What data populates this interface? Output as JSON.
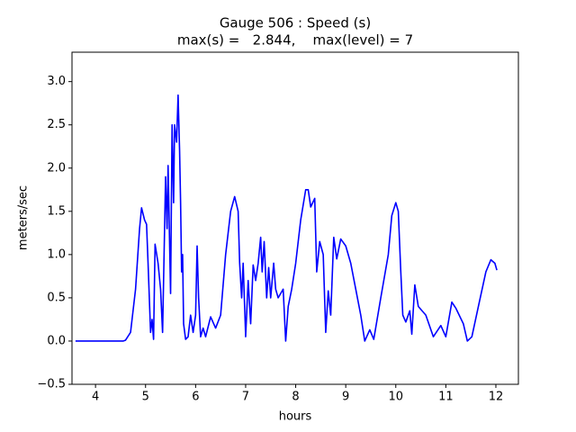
{
  "chart_data": {
    "type": "line",
    "title": "Gauge 506 : Speed (s)",
    "subtitle": "max(s) =   2.844,    max(level) = 7",
    "x_label": "hours",
    "y_label": "meters/sec",
    "color": "#0000ff",
    "x": [
      3.6,
      4.55,
      4.6,
      4.7,
      4.8,
      4.88,
      4.92,
      4.98,
      5.02,
      5.05,
      5.1,
      5.13,
      5.16,
      5.19,
      5.25,
      5.3,
      5.34,
      5.4,
      5.43,
      5.45,
      5.5,
      5.53,
      5.56,
      5.58,
      5.62,
      5.65,
      5.68,
      5.7,
      5.72,
      5.74,
      5.76,
      5.8,
      5.85,
      5.9,
      5.95,
      6.0,
      6.03,
      6.06,
      6.1,
      6.15,
      6.2,
      6.3,
      6.4,
      6.5,
      6.6,
      6.7,
      6.78,
      6.85,
      6.88,
      6.92,
      6.95,
      7.0,
      7.05,
      7.1,
      7.15,
      7.2,
      7.25,
      7.3,
      7.33,
      7.37,
      7.42,
      7.46,
      7.5,
      7.56,
      7.6,
      7.65,
      7.75,
      7.8,
      7.85,
      7.92,
      8.0,
      8.1,
      8.2,
      8.25,
      8.3,
      8.38,
      8.42,
      8.48,
      8.55,
      8.6,
      8.65,
      8.7,
      8.76,
      8.82,
      8.9,
      9.0,
      9.1,
      9.2,
      9.3,
      9.38,
      9.48,
      9.56,
      9.7,
      9.85,
      9.92,
      10.0,
      10.05,
      10.1,
      10.14,
      10.2,
      10.28,
      10.32,
      10.38,
      10.45,
      10.6,
      10.75,
      10.9,
      11.0,
      11.12,
      11.2,
      11.35,
      11.43,
      11.52,
      11.65,
      11.8,
      11.9,
      11.98,
      12.02
    ],
    "values": [
      0.0,
      0.0,
      0.01,
      0.1,
      0.6,
      1.3,
      1.54,
      1.4,
      1.35,
      0.9,
      0.1,
      0.25,
      0.02,
      1.12,
      0.9,
      0.6,
      0.1,
      1.9,
      1.3,
      2.03,
      0.55,
      2.5,
      1.6,
      2.5,
      2.3,
      2.844,
      2.2,
      1.6,
      0.8,
      1.0,
      0.2,
      0.02,
      0.05,
      0.3,
      0.1,
      0.3,
      1.1,
      0.5,
      0.05,
      0.15,
      0.05,
      0.28,
      0.15,
      0.3,
      1.0,
      1.5,
      1.67,
      1.5,
      0.9,
      0.5,
      0.9,
      0.05,
      0.7,
      0.2,
      0.88,
      0.7,
      0.9,
      1.2,
      0.8,
      1.15,
      0.5,
      0.85,
      0.5,
      0.9,
      0.6,
      0.5,
      0.6,
      0.0,
      0.4,
      0.6,
      0.9,
      1.4,
      1.75,
      1.75,
      1.55,
      1.65,
      0.8,
      1.15,
      1.0,
      0.1,
      0.58,
      0.3,
      1.2,
      0.95,
      1.18,
      1.1,
      0.9,
      0.6,
      0.3,
      0.0,
      0.13,
      0.02,
      0.5,
      1.0,
      1.45,
      1.6,
      1.5,
      0.8,
      0.3,
      0.22,
      0.35,
      0.08,
      0.65,
      0.4,
      0.3,
      0.05,
      0.18,
      0.05,
      0.45,
      0.38,
      0.2,
      0.0,
      0.05,
      0.4,
      0.8,
      0.94,
      0.9,
      0.82
    ],
    "xlim": [
      3.53,
      12.45
    ],
    "ylim": [
      -0.5,
      3.34
    ],
    "xticks": [
      4,
      5,
      6,
      7,
      8,
      9,
      10,
      11,
      12
    ],
    "yticks": [
      {
        "value": -0.5,
        "label": "−0.5"
      },
      {
        "value": 0,
        "label": "0.0"
      },
      0.5,
      {
        "value": 1,
        "label": "1.0"
      },
      1.5,
      {
        "value": 2,
        "label": "2.0"
      },
      2.5,
      {
        "value": 3,
        "label": "3.0"
      }
    ],
    "grid": false
  }
}
